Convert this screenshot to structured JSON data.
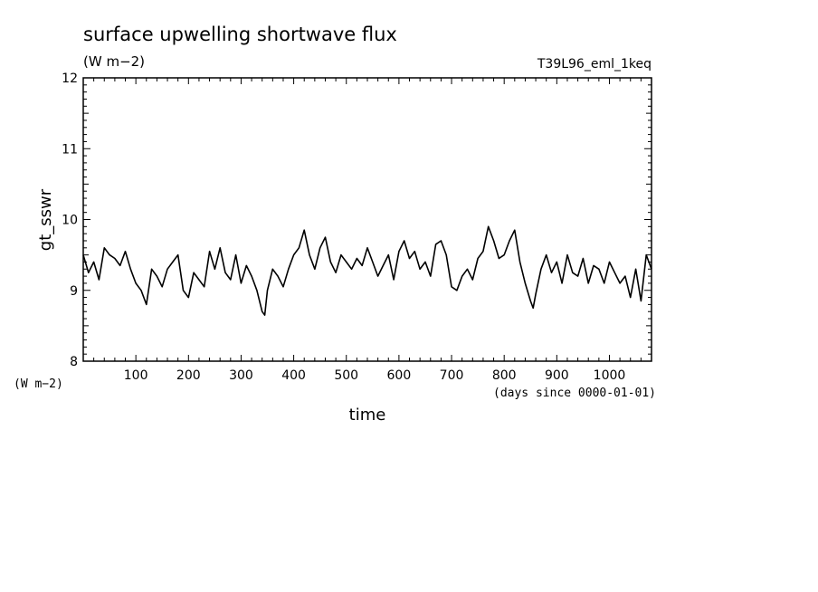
{
  "header": {
    "title": "surface upwelling shortwave flux",
    "units": "(W m−2)",
    "run_id": "T39L96_eml_1keq"
  },
  "chart_data": {
    "type": "line",
    "title": "surface upwelling shortwave flux",
    "xlabel": "time",
    "x_units": "(days since 0000-01-01)",
    "ylabel": "gt_sswr",
    "y_units": "(W m−2)",
    "xlim": [
      0,
      1080
    ],
    "ylim": [
      8,
      12
    ],
    "x_ticks": [
      100,
      200,
      300,
      400,
      500,
      600,
      700,
      800,
      900,
      1000
    ],
    "y_ticks": [
      8,
      9,
      10,
      11,
      12
    ],
    "line_color": "#000000",
    "grid": false,
    "series": [
      {
        "x": [
          0,
          10,
          20,
          30,
          40,
          50,
          60,
          70,
          80,
          90,
          100,
          110,
          120,
          130,
          140,
          150,
          160,
          170,
          180,
          190,
          200,
          210,
          220,
          230,
          240,
          250,
          260,
          270,
          280,
          290,
          300,
          310,
          320,
          330,
          340,
          345,
          350,
          360,
          370,
          380,
          390,
          400,
          410,
          420,
          430,
          440,
          450,
          460,
          470,
          480,
          490,
          500,
          510,
          520,
          530,
          540,
          550,
          560,
          570,
          580,
          590,
          600,
          610,
          620,
          630,
          640,
          650,
          660,
          670,
          680,
          690,
          700,
          710,
          720,
          730,
          740,
          750,
          760,
          770,
          780,
          790,
          800,
          810,
          820,
          830,
          840,
          850,
          855,
          860,
          870,
          880,
          890,
          900,
          910,
          920,
          930,
          940,
          950,
          960,
          970,
          980,
          990,
          1000,
          1010,
          1020,
          1030,
          1040,
          1050,
          1060,
          1070,
          1080
        ],
        "values": [
          9.5,
          9.25,
          9.4,
          9.15,
          9.6,
          9.5,
          9.45,
          9.35,
          9.55,
          9.3,
          9.1,
          9.0,
          8.8,
          9.3,
          9.2,
          9.05,
          9.3,
          9.4,
          9.5,
          9.0,
          8.9,
          9.25,
          9.15,
          9.05,
          9.55,
          9.3,
          9.6,
          9.25,
          9.15,
          9.5,
          9.1,
          9.35,
          9.2,
          9.0,
          8.7,
          8.65,
          9.0,
          9.3,
          9.2,
          9.05,
          9.3,
          9.5,
          9.6,
          9.85,
          9.5,
          9.3,
          9.6,
          9.75,
          9.4,
          9.25,
          9.5,
          9.4,
          9.3,
          9.45,
          9.35,
          9.6,
          9.4,
          9.2,
          9.35,
          9.5,
          9.15,
          9.55,
          9.7,
          9.45,
          9.55,
          9.3,
          9.4,
          9.2,
          9.65,
          9.7,
          9.5,
          9.05,
          9.0,
          9.2,
          9.3,
          9.15,
          9.45,
          9.55,
          9.9,
          9.7,
          9.45,
          9.5,
          9.7,
          9.85,
          9.4,
          9.1,
          8.85,
          8.75,
          8.95,
          9.3,
          9.5,
          9.25,
          9.4,
          9.1,
          9.5,
          9.25,
          9.2,
          9.45,
          9.1,
          9.35,
          9.3,
          9.1,
          9.4,
          9.25,
          9.1,
          9.2,
          8.9,
          9.3,
          8.85,
          9.5,
          9.3
        ]
      }
    ]
  }
}
